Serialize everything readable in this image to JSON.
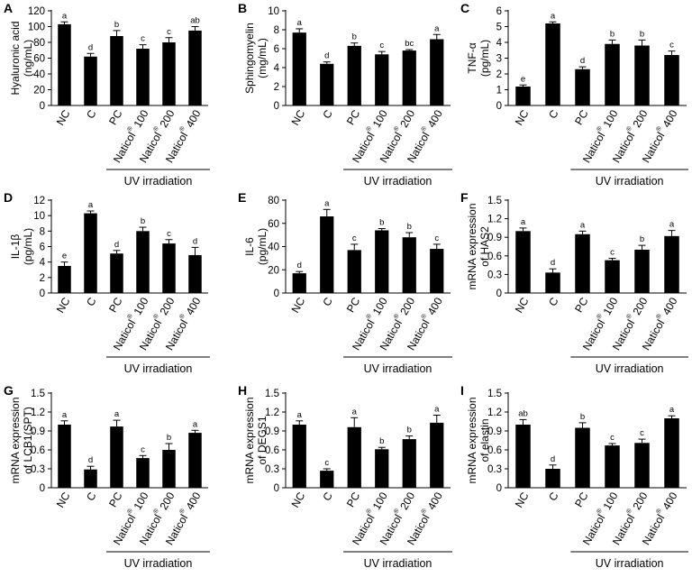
{
  "chart_data": [
    {
      "panel": "A",
      "type": "bar",
      "ylabel": [
        "Hyaluronic acid",
        "(ng/mL)"
      ],
      "ylim": [
        0,
        120
      ],
      "yticks": [
        0,
        20,
        40,
        60,
        80,
        100,
        120
      ],
      "categories": [
        "NC",
        "C",
        "PC",
        "Naticol® 100",
        "Naticol® 200",
        "Naticol® 400"
      ],
      "values": [
        103,
        62,
        88,
        72,
        80,
        95
      ],
      "errors": [
        3,
        4,
        7,
        5,
        6,
        5
      ],
      "significance": [
        "a",
        "d",
        "b",
        "c",
        "c",
        "ab"
      ],
      "group_label": "UV irradiation"
    },
    {
      "panel": "B",
      "type": "bar",
      "ylabel": [
        "Sphingomyelin",
        "(mg/mL)"
      ],
      "ylim": [
        0,
        10
      ],
      "yticks": [
        0,
        2,
        4,
        6,
        8,
        10
      ],
      "categories": [
        "NC",
        "C",
        "PC",
        "Naticol® 100",
        "Naticol® 200",
        "Naticol® 400"
      ],
      "values": [
        7.7,
        4.4,
        6.3,
        5.4,
        5.8,
        7.0
      ],
      "errors": [
        0.4,
        0.2,
        0.3,
        0.3,
        0.1,
        0.5
      ],
      "significance": [
        "a",
        "d",
        "b",
        "c",
        "bc",
        "a"
      ],
      "group_label": "UV irradiation"
    },
    {
      "panel": "C",
      "type": "bar",
      "ylabel": [
        "TNF-α",
        "(pg/mL)"
      ],
      "ylim": [
        0,
        6
      ],
      "yticks": [
        0,
        1,
        2,
        3,
        4,
        5,
        6
      ],
      "categories": [
        "NC",
        "C",
        "PC",
        "Naticol® 100",
        "Naticol® 200",
        "Naticol® 400"
      ],
      "values": [
        1.2,
        5.2,
        2.3,
        3.9,
        3.8,
        3.2
      ],
      "errors": [
        0.1,
        0.1,
        0.15,
        0.25,
        0.35,
        0.25
      ],
      "significance": [
        "e",
        "a",
        "d",
        "b",
        "b",
        "c"
      ],
      "group_label": "UV irradiation"
    },
    {
      "panel": "D",
      "type": "bar",
      "ylabel": [
        "IL-1β",
        "(pg/mL)"
      ],
      "ylim": [
        0,
        12
      ],
      "yticks": [
        0,
        2,
        4,
        6,
        8,
        10,
        12
      ],
      "categories": [
        "NC",
        "C",
        "PC",
        "Naticol® 100",
        "Naticol® 200",
        "Naticol® 400"
      ],
      "values": [
        3.5,
        10.3,
        5.1,
        8.0,
        6.4,
        4.9
      ],
      "errors": [
        0.5,
        0.3,
        0.4,
        0.5,
        0.5,
        1.0
      ],
      "significance": [
        "e",
        "a",
        "d",
        "b",
        "c",
        "d"
      ],
      "group_label": "UV irradiation"
    },
    {
      "panel": "E",
      "type": "bar",
      "ylabel": [
        "IL-6",
        "(pg/mL)"
      ],
      "ylim": [
        0,
        80
      ],
      "yticks": [
        0,
        20,
        40,
        60,
        80
      ],
      "categories": [
        "NC",
        "C",
        "PC",
        "Naticol® 100",
        "Naticol® 200",
        "Naticol® 400"
      ],
      "values": [
        17,
        66,
        37,
        54,
        48,
        38
      ],
      "errors": [
        1.5,
        6,
        5,
        1.5,
        4,
        4
      ],
      "significance": [
        "d",
        "a",
        "c",
        "b",
        "b",
        "c"
      ],
      "group_label": "UV irradiation"
    },
    {
      "panel": "F",
      "type": "bar",
      "ylabel": [
        "mRNA expression",
        "of HAS2"
      ],
      "ylim": [
        0,
        1.5
      ],
      "yticks": [
        0,
        0.3,
        0.6,
        0.9,
        1.2,
        1.5
      ],
      "categories": [
        "NC",
        "C",
        "PC",
        "Naticol® 100",
        "Naticol® 200",
        "Naticol® 400"
      ],
      "values": [
        1.0,
        0.33,
        0.95,
        0.53,
        0.7,
        0.92
      ],
      "errors": [
        0.05,
        0.06,
        0.05,
        0.03,
        0.07,
        0.09
      ],
      "significance": [
        "a",
        "d",
        "a",
        "c",
        "b",
        "a"
      ],
      "group_label": "UV irradiation"
    },
    {
      "panel": "G",
      "type": "bar",
      "ylabel": [
        "mRNA expression",
        "of LCB1(SPT)"
      ],
      "ylim": [
        0,
        1.5
      ],
      "yticks": [
        0,
        0.3,
        0.6,
        0.9,
        1.2,
        1.5
      ],
      "categories": [
        "NC",
        "C",
        "PC",
        "Naticol® 100",
        "Naticol® 200",
        "Naticol® 400"
      ],
      "values": [
        1.0,
        0.29,
        0.97,
        0.47,
        0.6,
        0.87
      ],
      "errors": [
        0.06,
        0.05,
        0.1,
        0.04,
        0.1,
        0.04
      ],
      "significance": [
        "a",
        "d",
        "a",
        "c",
        "b",
        "a"
      ],
      "group_label": "UV irradiation"
    },
    {
      "panel": "H",
      "type": "bar",
      "ylabel": [
        "mRNA expression",
        "of DEGS1"
      ],
      "ylim": [
        0,
        1.5
      ],
      "yticks": [
        0,
        0.3,
        0.6,
        0.9,
        1.2,
        1.5
      ],
      "categories": [
        "NC",
        "C",
        "PC",
        "Naticol® 100",
        "Naticol® 200",
        "Naticol® 400"
      ],
      "values": [
        1.0,
        0.27,
        0.96,
        0.61,
        0.77,
        1.03
      ],
      "errors": [
        0.06,
        0.03,
        0.15,
        0.03,
        0.05,
        0.12
      ],
      "significance": [
        "a",
        "c",
        "a",
        "b",
        "b",
        "a"
      ],
      "group_label": "UV irradiation"
    },
    {
      "panel": "I",
      "type": "bar",
      "ylabel": [
        "mRNA expression",
        "of elastin"
      ],
      "ylim": [
        0,
        1.5
      ],
      "yticks": [
        0,
        0.3,
        0.6,
        0.9,
        1.2,
        1.5
      ],
      "categories": [
        "NC",
        "C",
        "PC",
        "Naticol® 100",
        "Naticol® 200",
        "Naticol® 400"
      ],
      "values": [
        1.0,
        0.3,
        0.95,
        0.67,
        0.71,
        1.1
      ],
      "errors": [
        0.08,
        0.06,
        0.08,
        0.03,
        0.06,
        0.04
      ],
      "significance": [
        "ab",
        "d",
        "b",
        "c",
        "c",
        "a"
      ],
      "group_label": "UV irradiation"
    }
  ]
}
